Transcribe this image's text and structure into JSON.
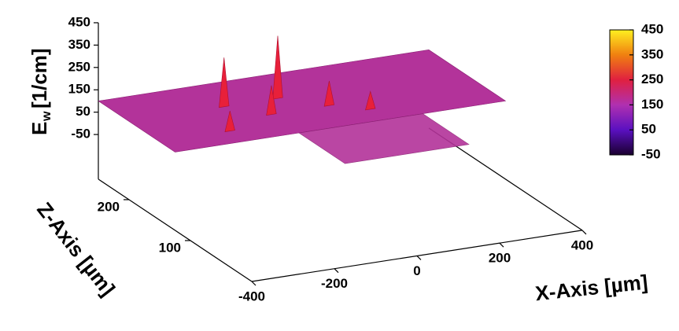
{
  "chart_data": {
    "type": "surface3d",
    "ylabel": {
      "main": "E",
      "sub": "w",
      "unit": "[1/cm]"
    },
    "xlabel": "X-Axis [µm]",
    "zlabel": "Z-Axis [µm]",
    "xlim": [
      -400,
      400
    ],
    "xticks": [
      -400,
      -200,
      0,
      200,
      400
    ],
    "zlim": [
      0,
      250
    ],
    "zticks": [
      100,
      200
    ],
    "ylim": [
      -250,
      450
    ],
    "yticks": [
      -50,
      50,
      150,
      250,
      350,
      450
    ],
    "surface_level": 100,
    "surface_color": "#b3339a",
    "peak_color": "#e8203a",
    "peaks": [
      {
        "x": -170,
        "z": 200,
        "value": 320
      },
      {
        "x": -40,
        "z": 200,
        "value": 380
      },
      {
        "x": -100,
        "z": 170,
        "value": 230
      },
      {
        "x": 40,
        "z": 170,
        "value": 210
      },
      {
        "x": -230,
        "z": 150,
        "value": 190
      },
      {
        "x": 110,
        "z": 150,
        "value": 180
      }
    ],
    "colorbar": {
      "lim": [
        -50,
        450
      ],
      "ticks": [
        -50,
        50,
        150,
        250,
        350,
        450
      ],
      "colors": [
        "#1a0030",
        "#5a10c0",
        "#b030b0",
        "#e02040",
        "#f08010",
        "#fff020"
      ]
    }
  }
}
